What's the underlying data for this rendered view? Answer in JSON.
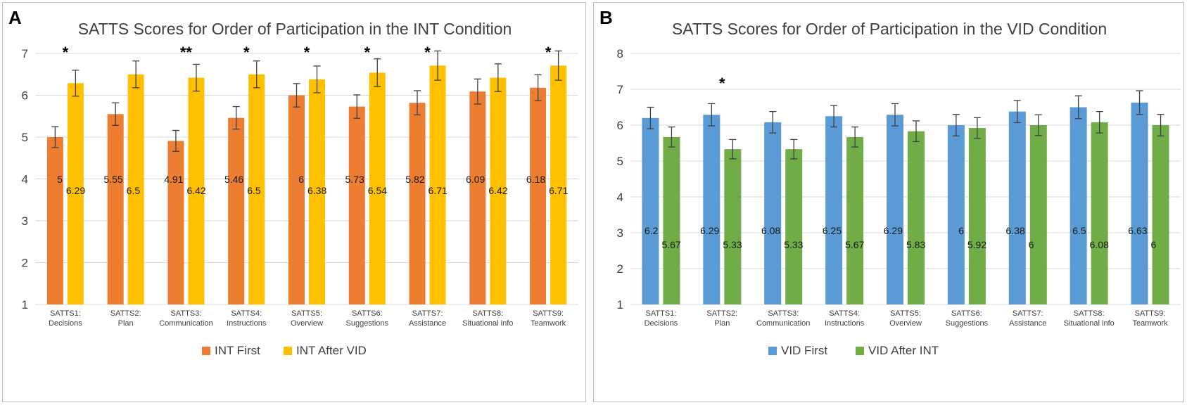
{
  "chart_data": [
    {
      "panel_label": "A",
      "type": "bar",
      "title": "SATTS Scores for Order of Participation in the INT Condition",
      "categories": [
        [
          "SATTS1:",
          "Decisions"
        ],
        [
          "SATTS2:",
          "Plan"
        ],
        [
          "SATTS3:",
          "Communication"
        ],
        [
          "SATTS4:",
          "Instructions"
        ],
        [
          "SATTS5:",
          "Overview"
        ],
        [
          "SATTS6:",
          "Suggestions"
        ],
        [
          "SATTS7:",
          "Assistance"
        ],
        [
          "SATTS8:",
          "Situational info"
        ],
        [
          "SATTS9:",
          "Teamwork"
        ]
      ],
      "ylim": [
        1,
        7
      ],
      "yticks": [
        1,
        2,
        3,
        4,
        5,
        6,
        7
      ],
      "grid": true,
      "legend_position": "bottom",
      "series": [
        {
          "name": "INT First",
          "color": "#ED7D31",
          "values": [
            5,
            5.55,
            4.91,
            5.46,
            6,
            5.73,
            5.82,
            6.09,
            6.18
          ],
          "labels": [
            "5",
            "5.55",
            "4.91",
            "5.46",
            "6",
            "5.73",
            "5.82",
            "6.09",
            "6.18"
          ],
          "error": [
            0.25,
            0.27,
            0.25,
            0.27,
            0.28,
            0.28,
            0.29,
            0.3,
            0.31
          ]
        },
        {
          "name": "INT After VID",
          "color": "#FFC000",
          "values": [
            6.29,
            6.5,
            6.42,
            6.5,
            6.38,
            6.54,
            6.71,
            6.42,
            6.71
          ],
          "labels": [
            "6.29",
            "6.5",
            "6.42",
            "6.5",
            "6.38",
            "6.54",
            "6.71",
            "6.42",
            "6.71"
          ],
          "error": [
            0.31,
            0.32,
            0.32,
            0.32,
            0.32,
            0.33,
            0.35,
            0.33,
            0.35
          ]
        }
      ],
      "significance": [
        "*",
        "",
        "**",
        "*",
        "*",
        "*",
        "*",
        "",
        "*"
      ]
    },
    {
      "panel_label": "B",
      "type": "bar",
      "title": "SATTS Scores for Order of Participation in the VID Condition",
      "categories": [
        [
          "SATTS1:",
          "Decisions"
        ],
        [
          "SATTS2:",
          "Plan"
        ],
        [
          "SATTS3:",
          "Communication"
        ],
        [
          "SATTS4:",
          "Instructions"
        ],
        [
          "SATTS5:",
          "Overview"
        ],
        [
          "SATTS6:",
          "Suggestions"
        ],
        [
          "SATTS7:",
          "Assistance"
        ],
        [
          "SATTS8:",
          "Situational info"
        ],
        [
          "SATTS9:",
          "Teamwork"
        ]
      ],
      "ylim": [
        1,
        8
      ],
      "yticks": [
        1,
        2,
        3,
        4,
        5,
        6,
        7,
        8
      ],
      "grid": true,
      "legend_position": "bottom",
      "series": [
        {
          "name": "VID First",
          "color": "#5B9BD5",
          "values": [
            6.2,
            6.29,
            6.08,
            6.25,
            6.29,
            6,
            6.38,
            6.5,
            6.63
          ],
          "labels": [
            "6.2",
            "6.29",
            "6.08",
            "6.25",
            "6.29",
            "6",
            "6.38",
            "6.5",
            "6.63"
          ],
          "error": [
            0.3,
            0.31,
            0.3,
            0.3,
            0.31,
            0.3,
            0.31,
            0.32,
            0.33
          ]
        },
        {
          "name": "VID After INT",
          "color": "#70AD47",
          "values": [
            5.67,
            5.33,
            5.33,
            5.67,
            5.83,
            5.92,
            6,
            6.08,
            6
          ],
          "labels": [
            "5.67",
            "5.33",
            "5.33",
            "5.67",
            "5.83",
            "5.92",
            "6",
            "6.08",
            "6"
          ],
          "error": [
            0.28,
            0.27,
            0.27,
            0.28,
            0.29,
            0.29,
            0.29,
            0.3,
            0.3
          ]
        }
      ],
      "significance": [
        "",
        "*",
        "",
        "",
        "",
        "",
        "",
        "",
        ""
      ]
    }
  ]
}
